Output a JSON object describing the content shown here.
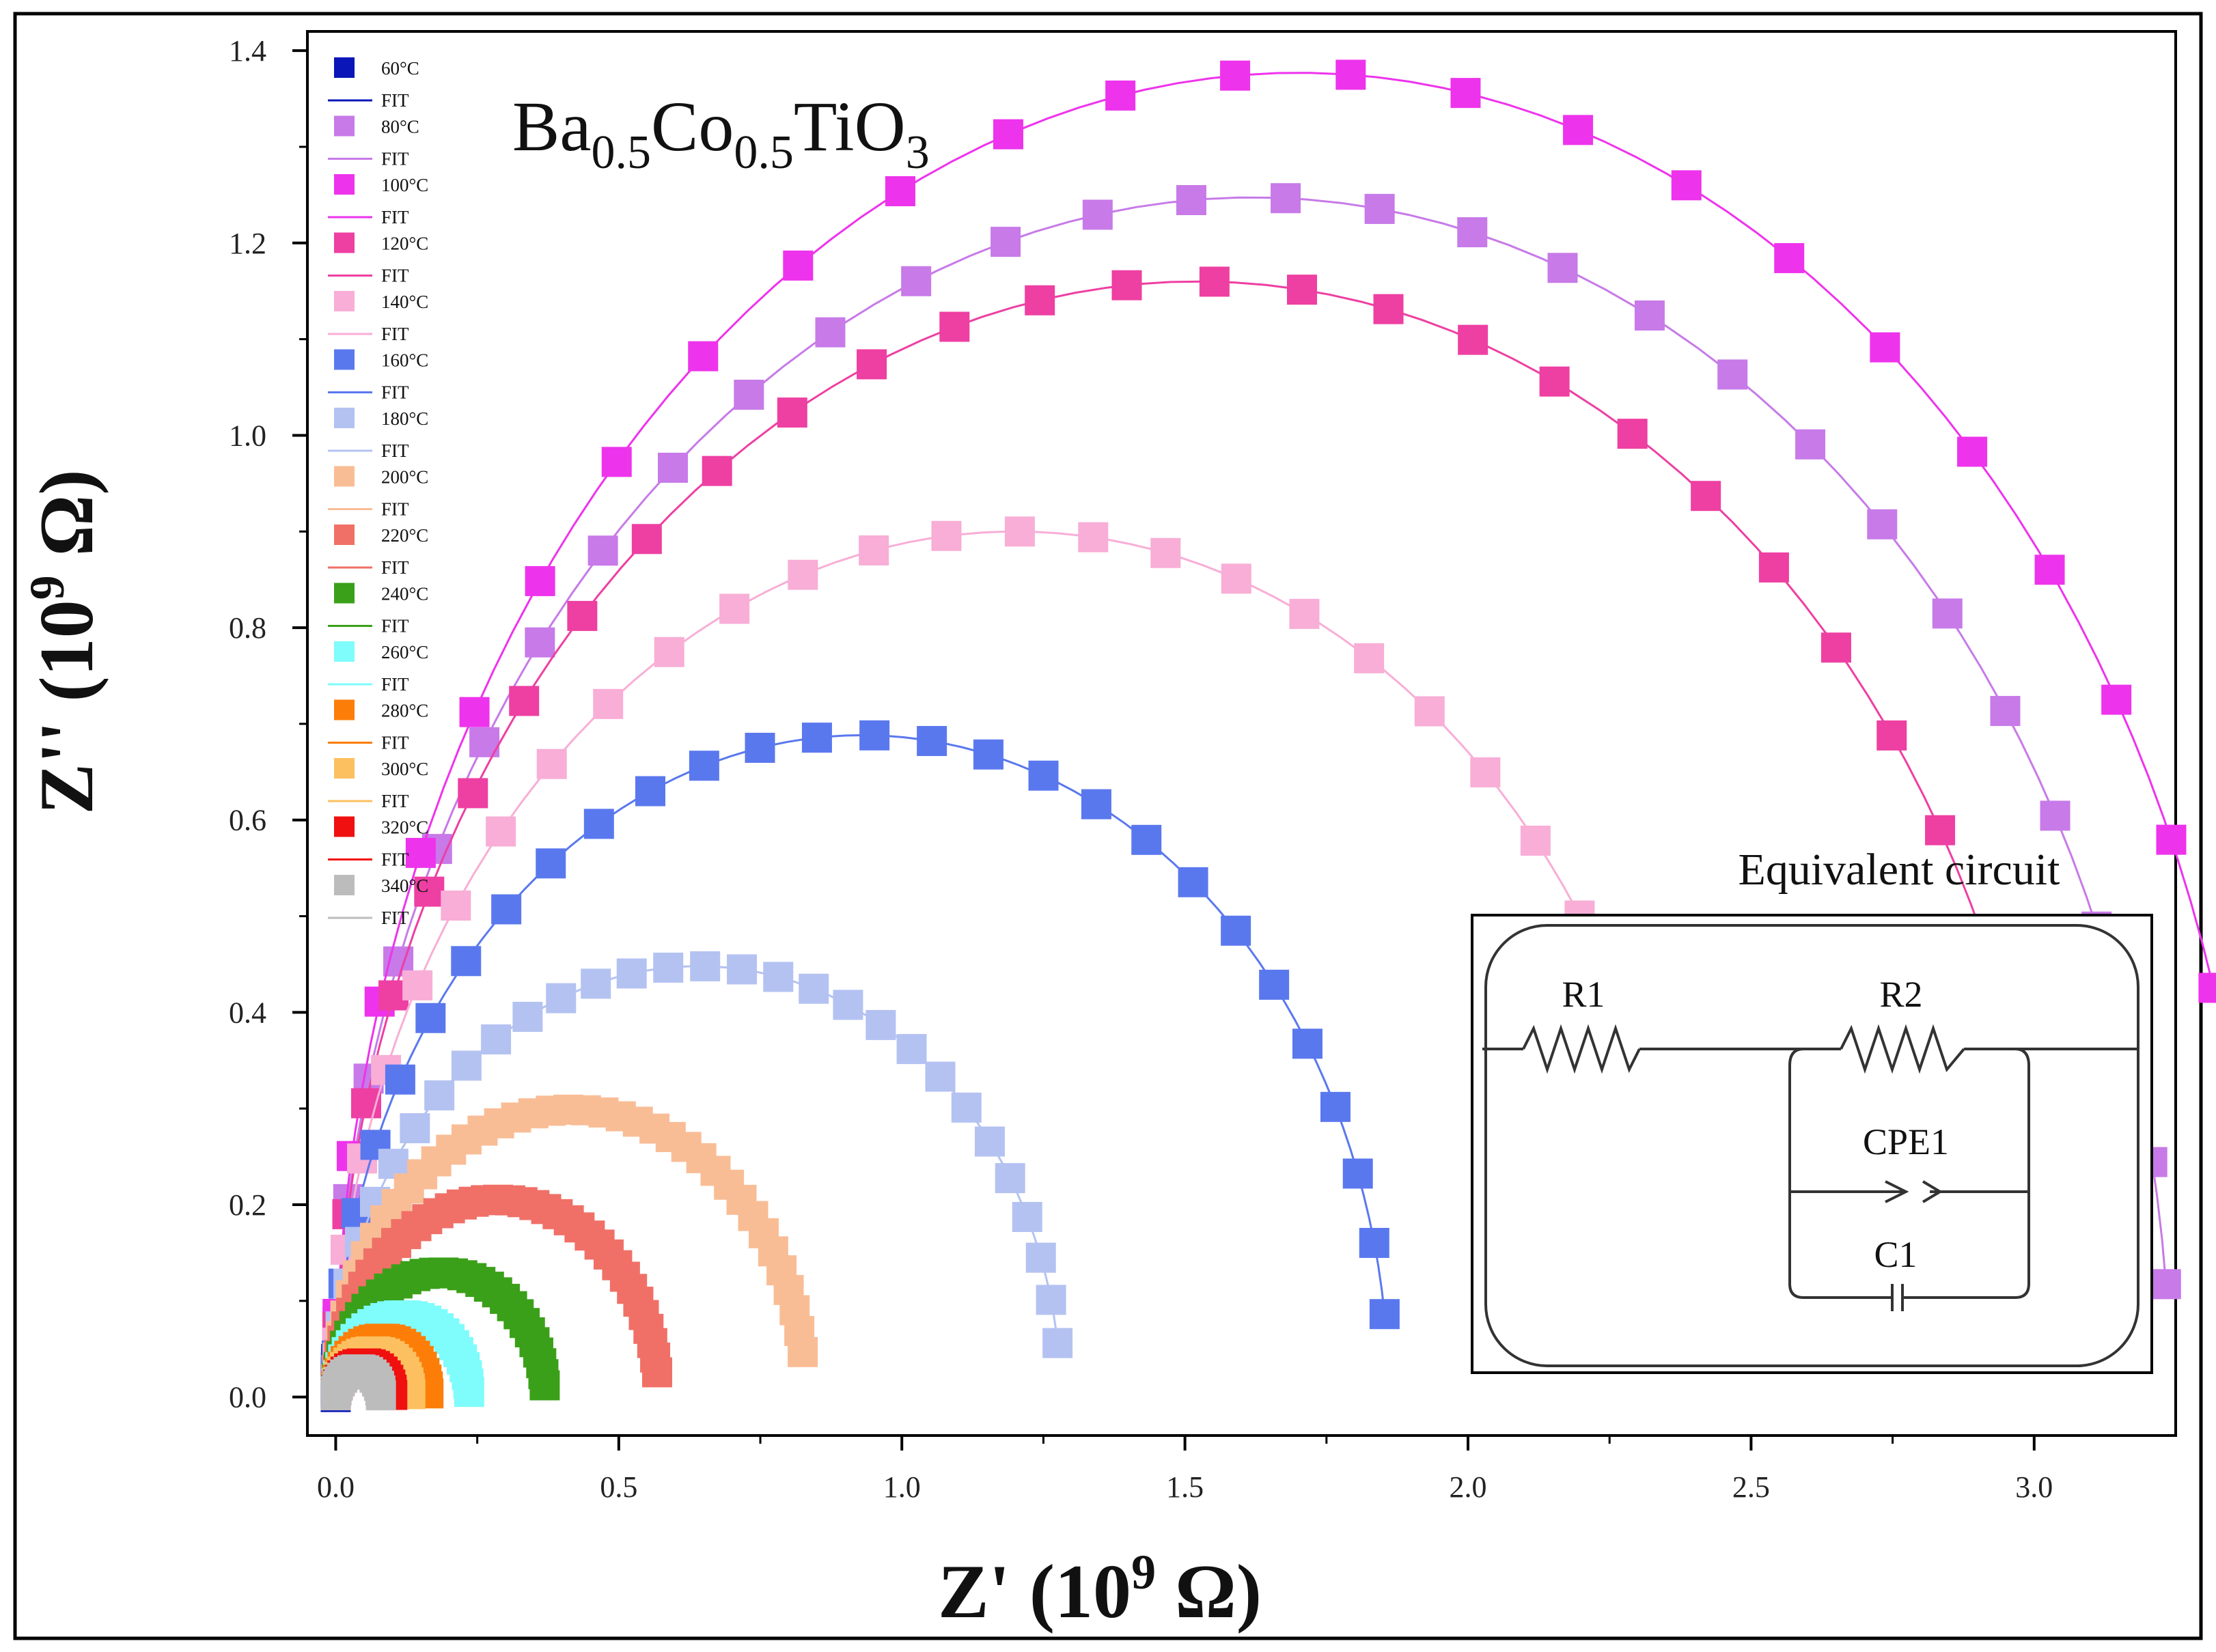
{
  "chart_data": {
    "type": "scatter",
    "title": "Ba0.5Co0.5TiO3",
    "title_parts": {
      "base1": "Ba",
      "sub1": "0.5",
      "base2": "Co",
      "sub2": "0.5",
      "base3": "TiO",
      "sub3": "3"
    },
    "xlabel": {
      "main": "Z' (10",
      "sup": "9",
      "unit": " Ω)"
    },
    "ylabel": {
      "main": "Z'' (10",
      "sup": "9",
      "unit": " Ω)"
    },
    "xlim": [
      -0.05,
      3.25
    ],
    "ylim": [
      -0.04,
      1.42
    ],
    "xticks": [
      "0.0",
      "0.5",
      "1.0",
      "1.5",
      "2.0",
      "2.5",
      "3.0"
    ],
    "yticks": [
      "0.0",
      "0.2",
      "0.4",
      "0.6",
      "0.8",
      "1.0",
      "1.2",
      "1.4"
    ],
    "fit_label": "FIT",
    "legend_position": "top-left",
    "series": [
      {
        "name": "60°C",
        "color": "#0b16b8",
        "R": 0.7,
        "kx": 0.65,
        "ky": 1.0,
        "tmin": 0.0,
        "tmax": 0.018,
        "n": 10
      },
      {
        "name": "80°C",
        "color": "#c77ae8",
        "R": 1.62,
        "kx": 1.0,
        "ky": 0.77,
        "tmin": 0.02,
        "tmax": 0.97,
        "n": 30
      },
      {
        "name": "100°C",
        "color": "#ee33ec",
        "R": 1.7,
        "kx": 1.0,
        "ky": 0.81,
        "tmin": 0.02,
        "tmax": 0.9,
        "n": 24
      },
      {
        "name": "120°C",
        "color": "#ee3fa2",
        "R": 1.45,
        "kx": 1.05,
        "ky": 0.8,
        "tmin": 0.02,
        "tmax": 0.96,
        "n": 30
      },
      {
        "name": "140°C",
        "color": "#f8aed6",
        "R": 1.2,
        "kx": 1.0,
        "ky": 0.75,
        "tmin": 0.02,
        "tmax": 0.95,
        "n": 28
      },
      {
        "name": "160°C",
        "color": "#5a78ee",
        "R": 0.93,
        "kx": 1.0,
        "ky": 0.74,
        "tmin": 0.02,
        "tmax": 0.96,
        "n": 28
      },
      {
        "name": "180°C",
        "color": "#b4c2f2",
        "R": 0.64,
        "kx": 1.0,
        "ky": 0.7,
        "tmin": 0.02,
        "tmax": 0.96,
        "n": 30
      },
      {
        "name": "200°C",
        "color": "#f9bd96",
        "R": 0.415,
        "kx": 1.0,
        "ky": 0.72,
        "tmin": 0.02,
        "tmax": 0.95,
        "n": 40
      },
      {
        "name": "220°C",
        "color": "#f07067",
        "R": 0.285,
        "kx": 1.0,
        "ky": 0.72,
        "tmin": 0.02,
        "tmax": 0.96,
        "n": 40
      },
      {
        "name": "240°C",
        "color": "#3ba019",
        "R": 0.185,
        "kx": 1.0,
        "ky": 0.7,
        "tmin": 0.02,
        "tmax": 0.97,
        "n": 34
      },
      {
        "name": "260°C",
        "color": "#7ffcfc",
        "R": 0.118,
        "kx": 1.0,
        "ky": 0.72,
        "tmin": 0.02,
        "tmax": 0.98,
        "n": 30
      },
      {
        "name": "280°C",
        "color": "#fc7e08",
        "R": 0.082,
        "kx": 1.0,
        "ky": 0.74,
        "tmin": 0.02,
        "tmax": 0.98,
        "n": 26
      },
      {
        "name": "300°C",
        "color": "#fcc060",
        "R": 0.066,
        "kx": 1.0,
        "ky": 0.72,
        "tmin": 0.02,
        "tmax": 0.98,
        "n": 24
      },
      {
        "name": "320°C",
        "color": "#f01010",
        "R": 0.05,
        "kx": 1.0,
        "ky": 0.7,
        "tmin": 0.02,
        "tmax": 0.98,
        "n": 20
      },
      {
        "name": "340°C",
        "color": "#bcbcbc",
        "R": 0.04,
        "kx": 1.0,
        "ky": 0.72,
        "tmin": 0.02,
        "tmax": 0.98,
        "n": 18
      }
    ]
  },
  "inset": {
    "title": "Equivalent circuit",
    "r1": "R1",
    "r2": "R2",
    "cpe1": "CPE1",
    "c1": "C1"
  }
}
